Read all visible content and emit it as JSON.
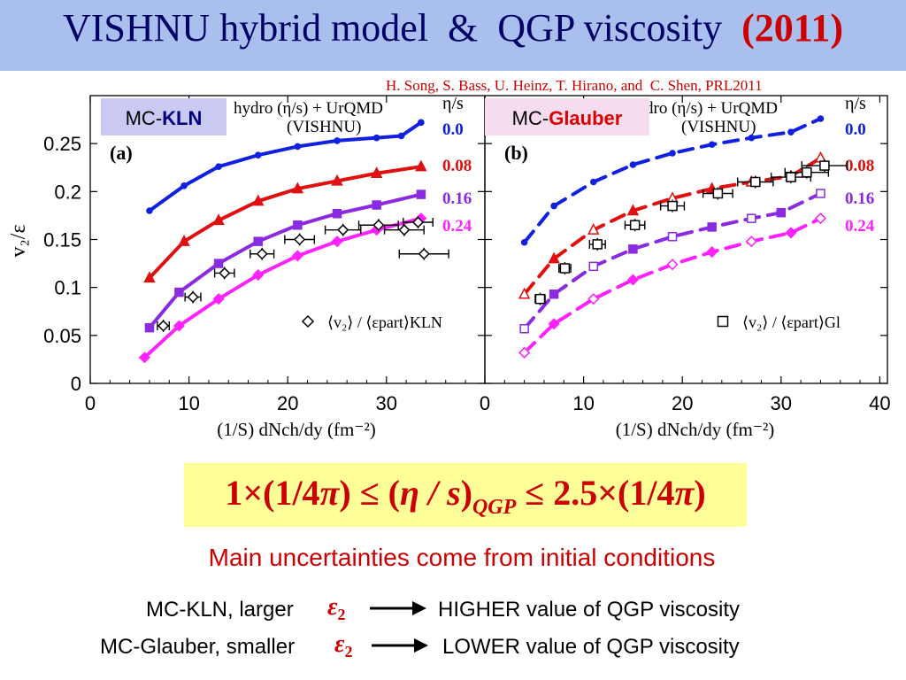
{
  "slide": {
    "title_main": "VISHNU hybrid model  &  QGP viscosity",
    "title_year": "(2011)",
    "citation": "H. Song, S. Bass, U. Heinz, T. Hirano, and  C. Shen, PRL2011",
    "formula": {
      "left_factor": "1×(1/4",
      "pi": "π",
      "leq1": ") ≤ (",
      "ratio": "η / s",
      "close": ")",
      "subscript": "QGP",
      "leq2": " ≤ 2.5×(1/4",
      "end": ")"
    },
    "uncertainty_text": "Main uncertainties come from initial conditions",
    "comparisons": [
      {
        "left": "MC-KLN, larger",
        "eps": "ε",
        "eps_sub": "2",
        "right": "HIGHER value of QGP viscosity"
      },
      {
        "left": "MC-Glauber, smaller",
        "eps": "ε",
        "eps_sub": "2",
        "right": "LOWER value of QGP viscosity"
      }
    ],
    "colors": {
      "title_bg": "#a9c0ef",
      "title_text": "#000066",
      "accent_red": "#cc0000",
      "formula_bg": "#ffff99",
      "kln_box": "#c9c9f2",
      "glauber_box": "#f5dcef"
    }
  },
  "chart_data": [
    {
      "type": "line",
      "panel_label": "(a)",
      "model_tag_prefix": "MC-",
      "model_tag_name": "KLN",
      "header_line1": "hydro (η/s) + UrQMD",
      "header_line2": "(VISHNU)",
      "legend_title": "η/s",
      "ylabel": "v₂/ε",
      "xlabel": "(1/S) dNch/dy (fm⁻²)",
      "x_ticks": [
        "0",
        "10",
        "20",
        "30"
      ],
      "y_ticks": [
        "0",
        "0.05",
        "0.1",
        "0.15",
        "0.2",
        "0.25"
      ],
      "xlim": [
        0,
        40
      ],
      "ylim": [
        0,
        0.3
      ],
      "series": [
        {
          "name": "0.0",
          "color": "#1020e0",
          "style": "solid",
          "x": [
            6,
            9.5,
            13,
            17,
            21,
            25,
            29,
            31.5,
            33.5
          ],
          "y": [
            0.18,
            0.206,
            0.226,
            0.238,
            0.247,
            0.253,
            0.256,
            0.258,
            0.272
          ]
        },
        {
          "name": "0.08",
          "color": "#e01010",
          "style": "solid",
          "x": [
            6,
            9.5,
            13,
            17,
            21,
            25,
            29,
            33.5
          ],
          "y": [
            0.11,
            0.148,
            0.17,
            0.19,
            0.203,
            0.211,
            0.219,
            0.226
          ]
        },
        {
          "name": "0.16",
          "color": "#8a2be2",
          "style": "solid",
          "x": [
            6,
            9,
            13,
            17,
            21,
            25,
            29,
            33.5
          ],
          "y": [
            0.058,
            0.095,
            0.125,
            0.148,
            0.165,
            0.177,
            0.186,
            0.197
          ]
        },
        {
          "name": "0.24",
          "color": "#ff22ff",
          "style": "solid",
          "x": [
            5.5,
            9,
            13,
            17,
            21,
            25,
            29,
            33.5
          ],
          "y": [
            0.027,
            0.06,
            0.088,
            0.113,
            0.133,
            0.148,
            0.16,
            0.172
          ]
        }
      ],
      "data_legend": "⟨v₂⟩ / ⟨εpart⟩KLN",
      "data_points": {
        "x": [
          7.4,
          10.4,
          13.6,
          17.4,
          21.2,
          25.6,
          29.2,
          31.8,
          33.2,
          33.8
        ],
        "y": [
          0.06,
          0.09,
          0.115,
          0.135,
          0.15,
          0.16,
          0.165,
          0.16,
          0.168,
          0.135
        ],
        "xerr": [
          0.6,
          0.8,
          1.0,
          1.2,
          1.5,
          1.8,
          2.0,
          2.0,
          1.5,
          2.5
        ]
      }
    },
    {
      "type": "line",
      "panel_label": "(b)",
      "model_tag_prefix": "MC-",
      "model_tag_name": "Glauber",
      "header_line1": "hydro (η/s) + UrQMD",
      "header_line2": "(VISHNU)",
      "legend_title": "η/s",
      "xlabel": "(1/S) dNch/dy (fm⁻²)",
      "x_ticks": [
        "0",
        "10",
        "20",
        "30",
        "40"
      ],
      "xlim": [
        0,
        40
      ],
      "ylim": [
        0,
        0.3
      ],
      "series": [
        {
          "name": "0.0",
          "color": "#1020e0",
          "style": "dashed",
          "x": [
            4,
            7,
            11,
            15,
            19,
            23,
            27,
            31,
            34
          ],
          "y": [
            0.147,
            0.185,
            0.21,
            0.228,
            0.24,
            0.249,
            0.256,
            0.262,
            0.276
          ]
        },
        {
          "name": "0.08",
          "color": "#e01010",
          "style": "dashed",
          "x": [
            4,
            7,
            11,
            15,
            19,
            23,
            27,
            31,
            34
          ],
          "y": [
            0.093,
            0.13,
            0.16,
            0.18,
            0.193,
            0.203,
            0.21,
            0.216,
            0.235
          ]
        },
        {
          "name": "0.16",
          "color": "#8a2be2",
          "style": "dashed",
          "x": [
            4,
            7,
            11,
            15,
            19,
            23,
            27,
            30,
            34
          ],
          "y": [
            0.057,
            0.093,
            0.122,
            0.14,
            0.153,
            0.163,
            0.172,
            0.178,
            0.198
          ]
        },
        {
          "name": "0.24",
          "color": "#ff22ff",
          "style": "dashed",
          "x": [
            4,
            7,
            11,
            15,
            19,
            23,
            27,
            31,
            34
          ],
          "y": [
            0.032,
            0.062,
            0.088,
            0.108,
            0.124,
            0.137,
            0.148,
            0.157,
            0.172
          ]
        }
      ],
      "data_legend": "⟨v₂⟩ / ⟨εpart⟩Gl",
      "data_points": {
        "x": [
          5.6,
          8.1,
          11.4,
          15.2,
          19.0,
          23.6,
          27.4,
          31.0,
          32.6,
          34.4
        ],
        "y": [
          0.088,
          0.12,
          0.145,
          0.165,
          0.185,
          0.198,
          0.21,
          0.215,
          0.22,
          0.227
        ],
        "xerr": [
          0.5,
          0.6,
          0.8,
          1.0,
          1.2,
          1.5,
          1.8,
          2.0,
          2.2,
          2.3
        ]
      }
    }
  ]
}
